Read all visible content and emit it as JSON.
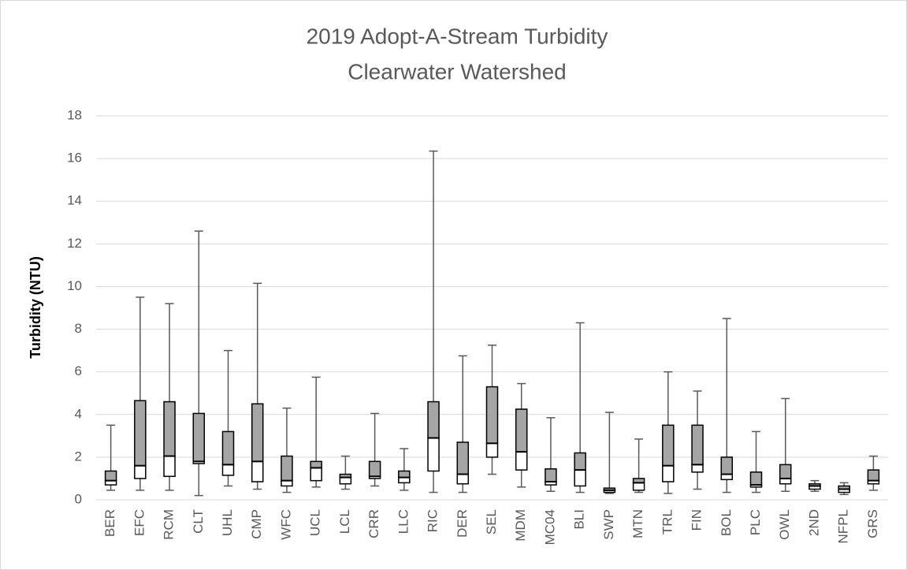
{
  "chart_data": {
    "type": "box",
    "title": [
      "2019 Adopt-A-Stream Turbidity",
      "Clearwater Watershed"
    ],
    "y_label": "Turbidity (NTU)",
    "categories": [
      "BER",
      "EFC",
      "RCM",
      "CLT",
      "UHL",
      "CMP",
      "WFC",
      "UCL",
      "LCL",
      "CRR",
      "LLC",
      "RIC",
      "DER",
      "SEL",
      "MDM",
      "MC04",
      "BLI",
      "SWP",
      "MTN",
      "TRL",
      "FIN",
      "BOL",
      "PLC",
      "OWL",
      "2ND",
      "NFPL",
      "GRS"
    ],
    "min": [
      0.45,
      0.45,
      0.45,
      0.2,
      0.65,
      0.5,
      0.35,
      0.6,
      0.5,
      0.65,
      0.45,
      0.35,
      0.35,
      1.2,
      0.6,
      0.4,
      0.35,
      0.3,
      0.35,
      0.3,
      0.5,
      0.35,
      0.35,
      0.4,
      0.4,
      0.25,
      0.45
    ],
    "q1": [
      0.7,
      1.0,
      1.1,
      1.7,
      1.15,
      0.85,
      0.65,
      0.9,
      0.75,
      1.0,
      0.8,
      1.35,
      0.75,
      2.0,
      1.4,
      0.7,
      0.65,
      0.35,
      0.45,
      0.85,
      1.3,
      0.95,
      0.6,
      0.75,
      0.5,
      0.35,
      0.75
    ],
    "median": [
      0.9,
      1.6,
      2.05,
      1.8,
      1.65,
      1.8,
      0.9,
      1.5,
      1.05,
      1.1,
      1.05,
      2.9,
      1.2,
      2.65,
      2.25,
      0.85,
      1.4,
      0.45,
      0.8,
      1.6,
      1.65,
      1.2,
      0.7,
      1.0,
      0.65,
      0.5,
      0.9
    ],
    "q3": [
      1.35,
      4.65,
      4.6,
      4.05,
      3.2,
      4.5,
      2.05,
      1.8,
      1.2,
      1.8,
      1.35,
      4.6,
      2.7,
      5.3,
      4.25,
      1.45,
      2.2,
      0.55,
      1.0,
      3.5,
      3.5,
      2.0,
      1.3,
      1.65,
      0.75,
      0.65,
      1.4
    ],
    "max": [
      3.5,
      9.5,
      9.2,
      12.6,
      7.0,
      10.15,
      4.3,
      5.75,
      2.05,
      4.05,
      2.4,
      16.35,
      6.75,
      7.25,
      5.45,
      3.85,
      8.3,
      4.1,
      2.85,
      6.0,
      5.1,
      8.5,
      3.2,
      4.75,
      0.9,
      0.8,
      2.05
    ],
    "upper_color": "#a5a5a5",
    "lower_color": "#ffffff",
    "ylim": [
      0,
      18
    ],
    "yticks": [
      0,
      2,
      4,
      6,
      8,
      10,
      12,
      14,
      16,
      18
    ],
    "grid": true
  }
}
